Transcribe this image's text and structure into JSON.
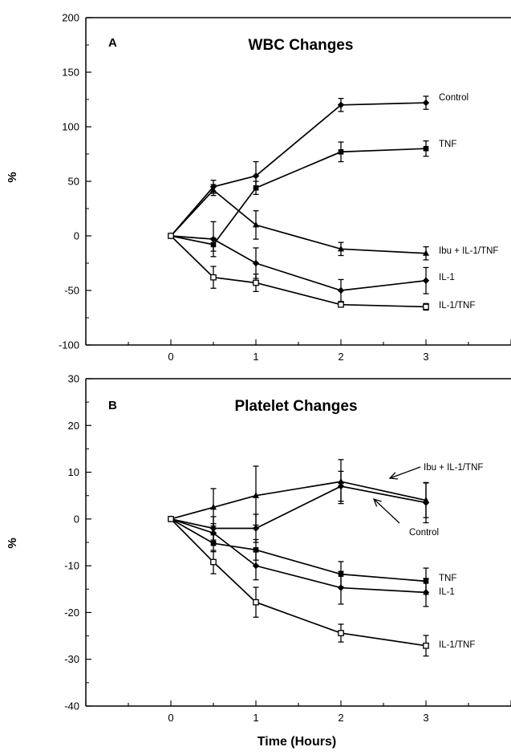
{
  "chart_data": [
    {
      "type": "line",
      "panel_letter": "A",
      "title": "WBC Changes",
      "ylabel": "%",
      "xlabel": "",
      "xlim": [
        -1,
        4
      ],
      "ylim": [
        -100,
        200
      ],
      "x_ticks": [
        0,
        1,
        2,
        3
      ],
      "y_ticks": [
        -100,
        -50,
        0,
        50,
        100,
        150,
        200
      ],
      "grid": false,
      "legend": "direct labels at line ends",
      "series": [
        {
          "name": "Control",
          "marker": "filled-diamond",
          "x": [
            0,
            0.5,
            1,
            2,
            3
          ],
          "y": [
            0,
            45,
            55,
            120,
            122
          ],
          "err": [
            0,
            6,
            13,
            6,
            6
          ]
        },
        {
          "name": "TNF",
          "marker": "filled-square",
          "x": [
            0,
            0.5,
            1,
            2,
            3
          ],
          "y": [
            0,
            -8,
            44,
            77,
            80
          ],
          "err": [
            0,
            6,
            6,
            9,
            7
          ]
        },
        {
          "name": "Ibu + IL-1/TNF",
          "marker": "filled-triangle",
          "x": [
            0,
            0.5,
            1,
            2,
            3
          ],
          "y": [
            0,
            42,
            10,
            -12,
            -16
          ],
          "err": [
            0,
            5,
            13,
            6,
            6
          ]
        },
        {
          "name": "IL-1",
          "marker": "filled-diamond",
          "x": [
            0,
            0.5,
            1,
            2,
            3
          ],
          "y": [
            0,
            -3,
            -25,
            -50,
            -41
          ],
          "err": [
            0,
            16,
            14,
            10,
            12
          ]
        },
        {
          "name": "IL-1/TNF",
          "marker": "open-square",
          "x": [
            0,
            0.5,
            1,
            2,
            3
          ],
          "y": [
            0,
            -38,
            -43,
            -63,
            -65
          ],
          "err": [
            0,
            10,
            8,
            2,
            3
          ]
        }
      ]
    },
    {
      "type": "line",
      "panel_letter": "B",
      "title": "Platelet Changes",
      "ylabel": "%",
      "xlabel": "Time (Hours)",
      "xlim": [
        -1,
        4
      ],
      "ylim": [
        -40,
        30
      ],
      "x_ticks": [
        0,
        1,
        2,
        3
      ],
      "y_ticks": [
        -40,
        -30,
        -20,
        -10,
        0,
        10,
        20,
        30
      ],
      "grid": false,
      "legend": "direct labels at line ends; arrows point to Ibu + IL-1/TNF and Control",
      "series": [
        {
          "name": "Ibu + IL-1/TNF",
          "marker": "filled-triangle",
          "x": [
            0,
            0.5,
            1,
            2,
            3
          ],
          "y": [
            0,
            2.5,
            5,
            8,
            4
          ],
          "err": [
            0,
            4,
            6.3,
            4.7,
            3.7
          ]
        },
        {
          "name": "Control",
          "marker": "filled-diamond",
          "x": [
            0,
            0.5,
            1,
            2,
            3
          ],
          "y": [
            0,
            -2,
            -2,
            7,
            3.5
          ],
          "err": [
            0,
            2.5,
            3,
            3.2,
            4.3
          ]
        },
        {
          "name": "TNF",
          "marker": "filled-square",
          "x": [
            0,
            0.5,
            1,
            2,
            3
          ],
          "y": [
            0,
            -5.2,
            -6.6,
            -11.8,
            -13.3
          ],
          "err": [
            0,
            1.8,
            2.2,
            2.7,
            2.8
          ]
        },
        {
          "name": "IL-1",
          "marker": "filled-diamond",
          "x": [
            0,
            0.5,
            1,
            2,
            3
          ],
          "y": [
            0,
            -3,
            -10,
            -14.7,
            -15.7
          ],
          "err": [
            0,
            2,
            3,
            3.5,
            3
          ]
        },
        {
          "name": "IL-1/TNF",
          "marker": "open-square",
          "x": [
            0,
            0.5,
            1,
            2,
            3
          ],
          "y": [
            0,
            -9.2,
            -17.8,
            -24.4,
            -27.1
          ],
          "err": [
            0,
            2.5,
            3.2,
            1.9,
            2.2
          ]
        }
      ]
    }
  ]
}
